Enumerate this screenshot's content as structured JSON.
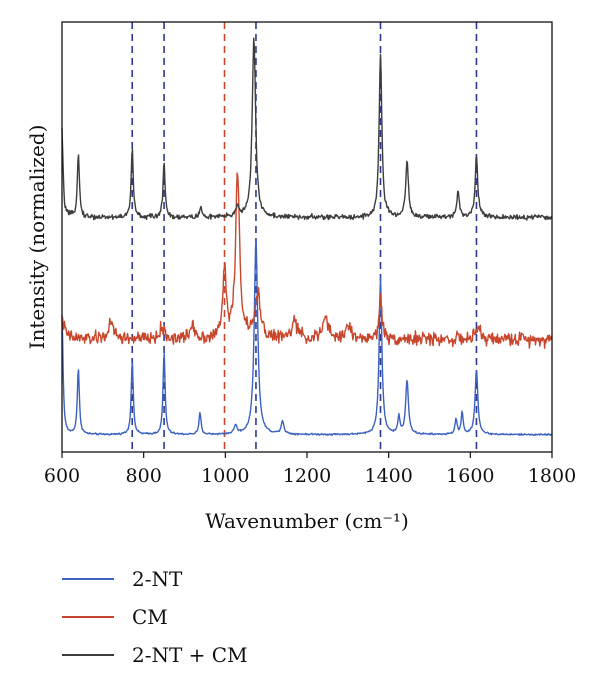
{
  "chart_data": {
    "type": "line",
    "title": "",
    "xlabel": "Wavenumber (cm⁻¹)",
    "ylabel": "Intensity (normalized)",
    "xlim": [
      600,
      1800
    ],
    "x_ticks": [
      "600",
      "800",
      "1000",
      "1200",
      "1400",
      "1600",
      "1800"
    ],
    "y_ticks_shown": false,
    "grid": false,
    "legend_position": "below",
    "reference_lines": [
      {
        "x": 772,
        "color": "#2b3a8f",
        "style": "dashed"
      },
      {
        "x": 850,
        "color": "#2b3a8f",
        "style": "dashed"
      },
      {
        "x": 998,
        "color": "#c8472c",
        "style": "dashed"
      },
      {
        "x": 1075,
        "color": "#2b3a8f",
        "style": "dashed"
      },
      {
        "x": 1380,
        "color": "#2b3a8f",
        "style": "dashed"
      },
      {
        "x": 1615,
        "color": "#2b3a8f",
        "style": "dashed"
      }
    ],
    "series": [
      {
        "name": "2-NT",
        "color": "#3b62bf",
        "baseline": 0.0,
        "noise": 0.004,
        "peaks": [
          [
            600,
            0.55,
            3
          ],
          [
            640,
            0.3,
            3
          ],
          [
            772,
            0.34,
            3
          ],
          [
            850,
            0.38,
            3
          ],
          [
            938,
            0.1,
            3
          ],
          [
            1025,
            0.04,
            4
          ],
          [
            1075,
            0.9,
            5
          ],
          [
            1140,
            0.06,
            4
          ],
          [
            1380,
            0.72,
            4
          ],
          [
            1425,
            0.08,
            3
          ],
          [
            1445,
            0.25,
            4
          ],
          [
            1565,
            0.07,
            3
          ],
          [
            1580,
            0.1,
            3
          ],
          [
            1615,
            0.3,
            4
          ]
        ]
      },
      {
        "name": "CM",
        "color": "#c8472c",
        "baseline": 0.44,
        "noise": 0.03,
        "peaks": [
          [
            600,
            0.08,
            8
          ],
          [
            720,
            0.07,
            8
          ],
          [
            845,
            0.05,
            6
          ],
          [
            920,
            0.07,
            6
          ],
          [
            998,
            0.32,
            5
          ],
          [
            1030,
            0.75,
            6
          ],
          [
            1080,
            0.2,
            8
          ],
          [
            1170,
            0.08,
            8
          ],
          [
            1245,
            0.1,
            7
          ],
          [
            1300,
            0.06,
            8
          ],
          [
            1380,
            0.2,
            4
          ],
          [
            1620,
            0.06,
            5
          ]
        ]
      },
      {
        "name": "2-NT + CM",
        "color": "#3d3d3d",
        "baseline": 1.0,
        "noise": 0.012,
        "peaks": [
          [
            600,
            0.4,
            3
          ],
          [
            640,
            0.3,
            3
          ],
          [
            772,
            0.32,
            3
          ],
          [
            850,
            0.26,
            3
          ],
          [
            940,
            0.05,
            3
          ],
          [
            1030,
            0.05,
            5
          ],
          [
            1070,
            0.82,
            5
          ],
          [
            1380,
            0.75,
            4
          ],
          [
            1445,
            0.26,
            4
          ],
          [
            1570,
            0.12,
            4
          ],
          [
            1615,
            0.28,
            4
          ]
        ]
      }
    ]
  }
}
